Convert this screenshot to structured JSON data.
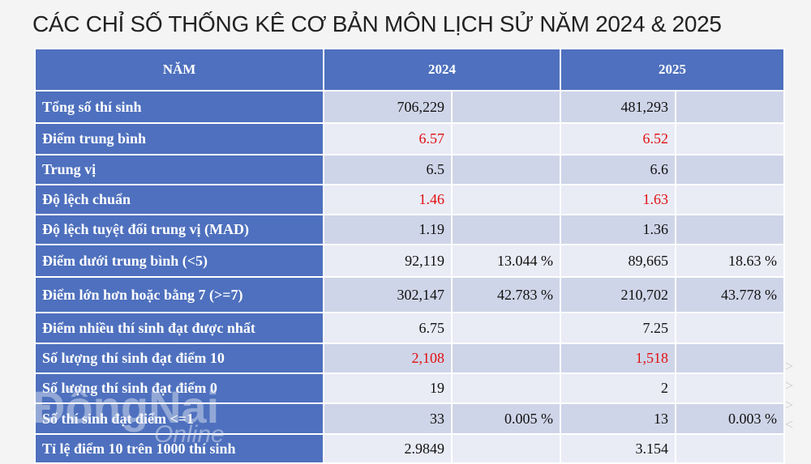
{
  "title": "CÁC CHỈ SỐ THỐNG KÊ CƠ BẢN MÔN LỊCH SỬ NĂM 2024 & 2025",
  "header": {
    "col0": "NĂM",
    "col1": "2024",
    "col2": "2025"
  },
  "highlight_color": "#e01010",
  "rows": [
    {
      "label": "Tổng số thí sinh",
      "v2024": "706,229",
      "p2024": "",
      "v2025": "481,293",
      "p2025": "",
      "red": false
    },
    {
      "label": "Điểm trung bình",
      "v2024": "6.57",
      "p2024": "",
      "v2025": "6.52",
      "p2025": "",
      "red": true
    },
    {
      "label": "Trung vị",
      "v2024": "6.5",
      "p2024": "",
      "v2025": "6.6",
      "p2025": "",
      "red": false
    },
    {
      "label": "Độ lệch chuẩn",
      "v2024": "1.46",
      "p2024": "",
      "v2025": "1.63",
      "p2025": "",
      "red": true
    },
    {
      "label": "Độ lệch tuyệt đối trung vị (MAD)",
      "v2024": "1.19",
      "p2024": "",
      "v2025": "1.36",
      "p2025": "",
      "red": false
    },
    {
      "label": "Điểm dưới trung bình (<5)",
      "v2024": "92,119",
      "p2024": "13.044 %",
      "v2025": "89,665",
      "p2025": "18.63 %",
      "red": false
    },
    {
      "label": "Điểm lớn hơn hoặc bằng 7 (>=7)",
      "v2024": "302,147",
      "p2024": "42.783 %",
      "v2025": "210,702",
      "p2025": "43.778 %",
      "red": false
    },
    {
      "label": "Điểm nhiều thí sinh đạt được nhất",
      "v2024": "6.75",
      "p2024": "",
      "v2025": "7.25",
      "p2025": "",
      "red": false
    },
    {
      "label": "Số lượng thí sinh đạt điểm 10",
      "v2024": "2,108",
      "p2024": "",
      "v2025": "1,518",
      "p2025": "",
      "red": true
    },
    {
      "label": "Số lượng thí sinh đạt điểm 0",
      "v2024": "19",
      "p2024": "",
      "v2025": "2",
      "p2025": "",
      "red": false
    },
    {
      "label": "Số thí sinh đạt điểm <=1",
      "v2024": "33",
      "p2024": "0.005 %",
      "v2025": "13",
      "p2025": "0.003 %",
      "red": false
    },
    {
      "label": "Tỉ lệ điểm 10 trên 1000 thí sinh",
      "v2024": "2.9849",
      "p2024": "",
      "v2025": "3.154",
      "p2025": "",
      "red": false
    }
  ],
  "watermark": {
    "line1": "ĐồngNai",
    "line2": "Online"
  }
}
